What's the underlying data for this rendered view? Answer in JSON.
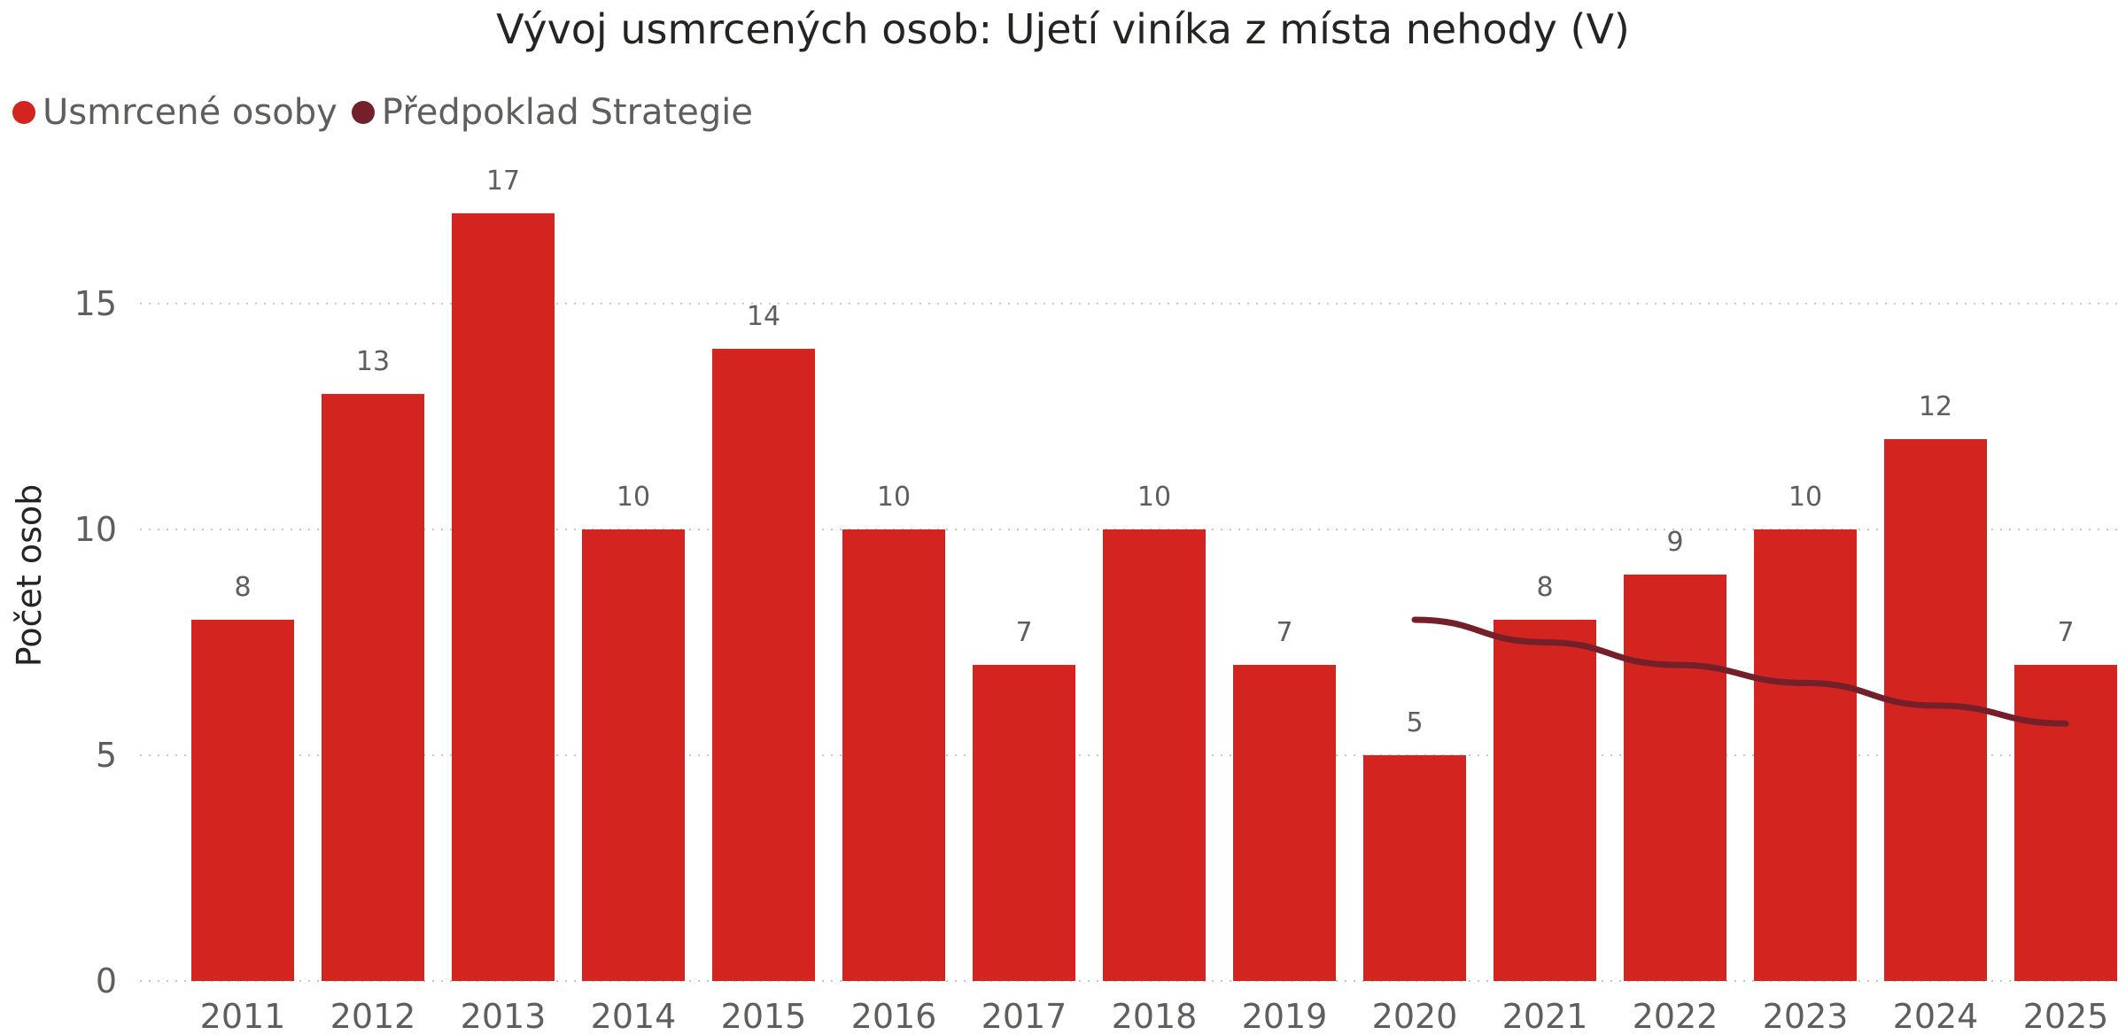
{
  "chart_data": {
    "type": "bar",
    "title": "Vývoj usmrcených osob: Ujetí viníka z místa nehody (V)",
    "xlabel": "",
    "ylabel": "Počet osob",
    "ylim": [
      0,
      17.9
    ],
    "yticks": [
      0,
      5,
      10,
      15
    ],
    "grid": true,
    "legend_position": "top-left",
    "categories": [
      "2011",
      "2012",
      "2013",
      "2014",
      "2015",
      "2016",
      "2017",
      "2018",
      "2019",
      "2020",
      "2021",
      "2022",
      "2023",
      "2024",
      "2025"
    ],
    "series": [
      {
        "name": "Usmrcené osoby",
        "type": "bar",
        "color": "#d32420",
        "values": [
          8,
          13,
          17,
          10,
          14,
          10,
          7,
          10,
          7,
          5,
          8,
          9,
          10,
          12,
          7
        ],
        "data_labels": [
          "8",
          "13",
          "17",
          "10",
          "14",
          "10",
          "7",
          "10",
          "7",
          "5",
          "8",
          "9",
          "10",
          "12",
          "7"
        ]
      },
      {
        "name": "Předpoklad Strategie",
        "type": "line",
        "color": "#74202a",
        "x": [
          "2020",
          "2021",
          "2022",
          "2023",
          "2024",
          "2025"
        ],
        "values": [
          8.0,
          7.5,
          7.0,
          6.6,
          6.1,
          5.7
        ]
      }
    ]
  }
}
